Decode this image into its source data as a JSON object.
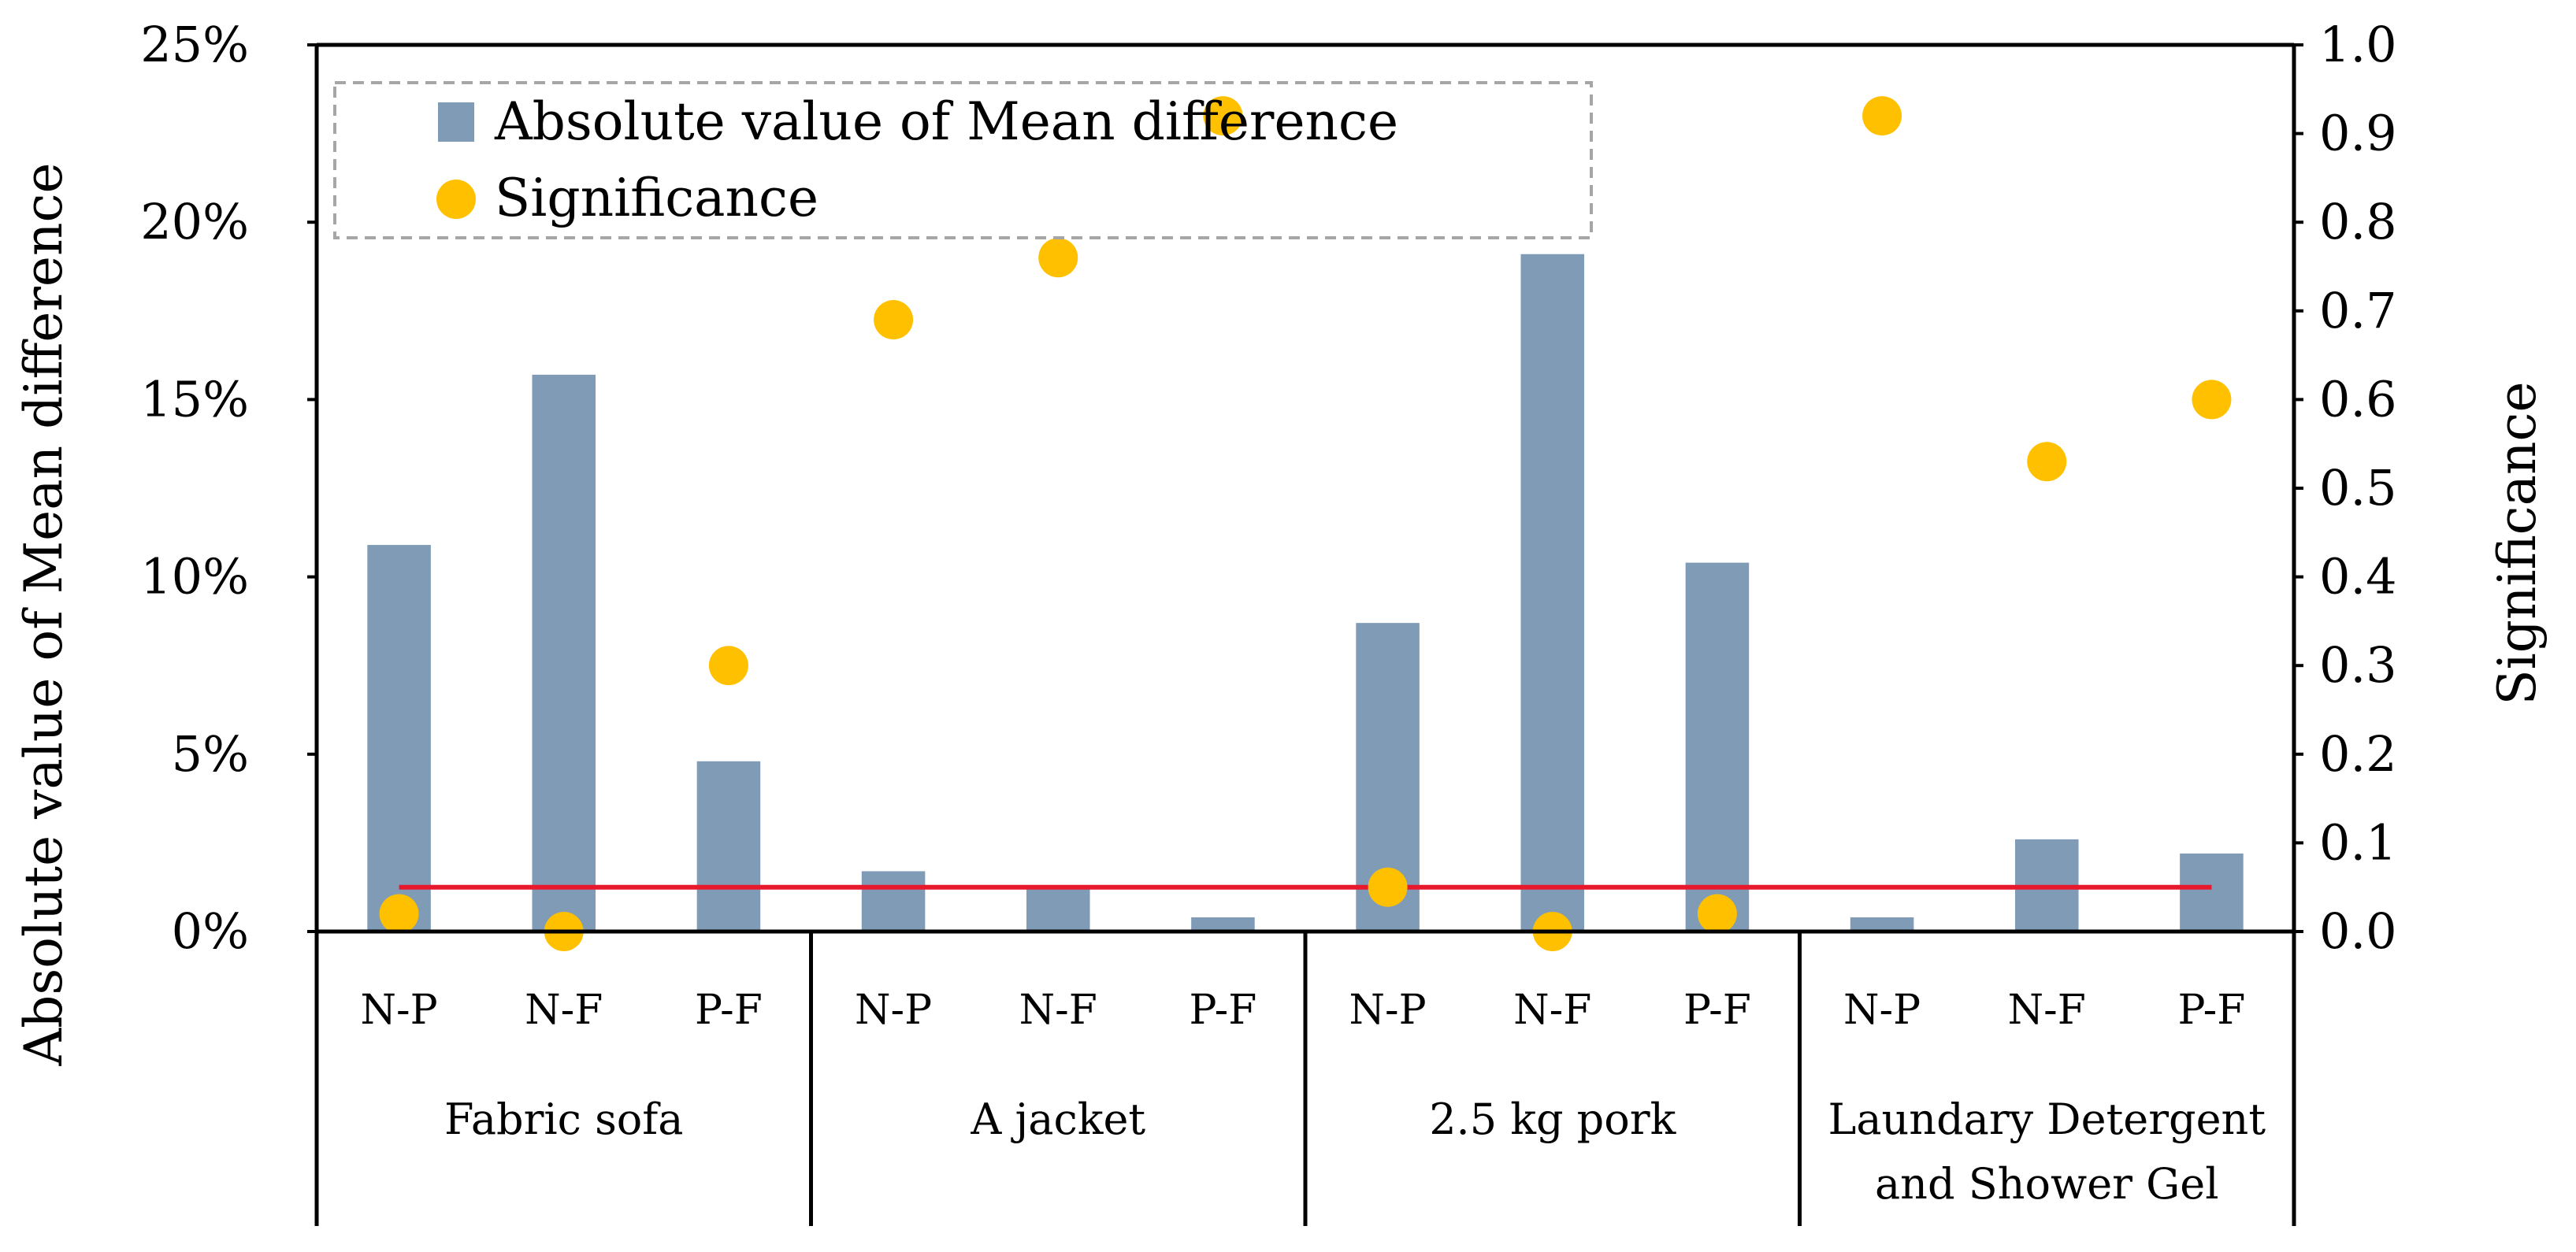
{
  "chart_data": {
    "type": "bar",
    "title": "",
    "groups": [
      {
        "label": "Fabric sofa",
        "lines": [
          "Fabric sofa"
        ],
        "categories": [
          "N-P",
          "N-F",
          "P-F"
        ]
      },
      {
        "label": "A jacket",
        "lines": [
          "A jacket"
        ],
        "categories": [
          "N-P",
          "N-F",
          "P-F"
        ]
      },
      {
        "label": "2.5 kg pork",
        "lines": [
          "2.5 kg pork"
        ],
        "categories": [
          "N-P",
          "N-F",
          "P-F"
        ]
      },
      {
        "label": "Laundary Detergent and Shower Gel",
        "lines": [
          "Laundary Detergent",
          "and Shower Gel"
        ],
        "categories": [
          "N-P",
          "N-F",
          "P-F"
        ]
      }
    ],
    "series": [
      {
        "name": "Absolute value of Mean difference",
        "kind": "bar",
        "axis": "left",
        "color": "#7f9bb6",
        "values": [
          10.9,
          15.7,
          4.8,
          1.7,
          1.3,
          0.4,
          8.7,
          19.1,
          10.4,
          0.4,
          2.6,
          2.2
        ]
      },
      {
        "name": "Significance",
        "kind": "scatter",
        "axis": "right",
        "color": "#ffc000",
        "values": [
          0.02,
          0.0,
          0.3,
          0.69,
          0.76,
          0.92,
          0.05,
          0.0,
          0.02,
          0.92,
          0.53,
          0.6
        ]
      }
    ],
    "reference_line": {
      "axis": "right",
      "value": 0.05,
      "color": "#e8192c"
    },
    "y_left": {
      "label": "Absolute value of Mean difference",
      "ylim": [
        0,
        25
      ],
      "ticks": [
        0,
        5,
        10,
        15,
        20,
        25
      ],
      "tick_labels": [
        "0%",
        "5%",
        "10%",
        "15%",
        "20%",
        "25%"
      ]
    },
    "y_right": {
      "label": "Significance",
      "ylim": [
        0,
        1
      ],
      "ticks": [
        0,
        0.1,
        0.2,
        0.3,
        0.4,
        0.5,
        0.6,
        0.7,
        0.8,
        0.9,
        1
      ],
      "tick_labels": [
        "0.0",
        "0.1",
        "0.2",
        "0.3",
        "0.4",
        "0.5",
        "0.6",
        "0.7",
        "0.8",
        "0.9",
        "1.0"
      ]
    },
    "legend": {
      "position": "top-left",
      "entries": [
        "Absolute value of Mean difference",
        "Significance"
      ]
    }
  }
}
